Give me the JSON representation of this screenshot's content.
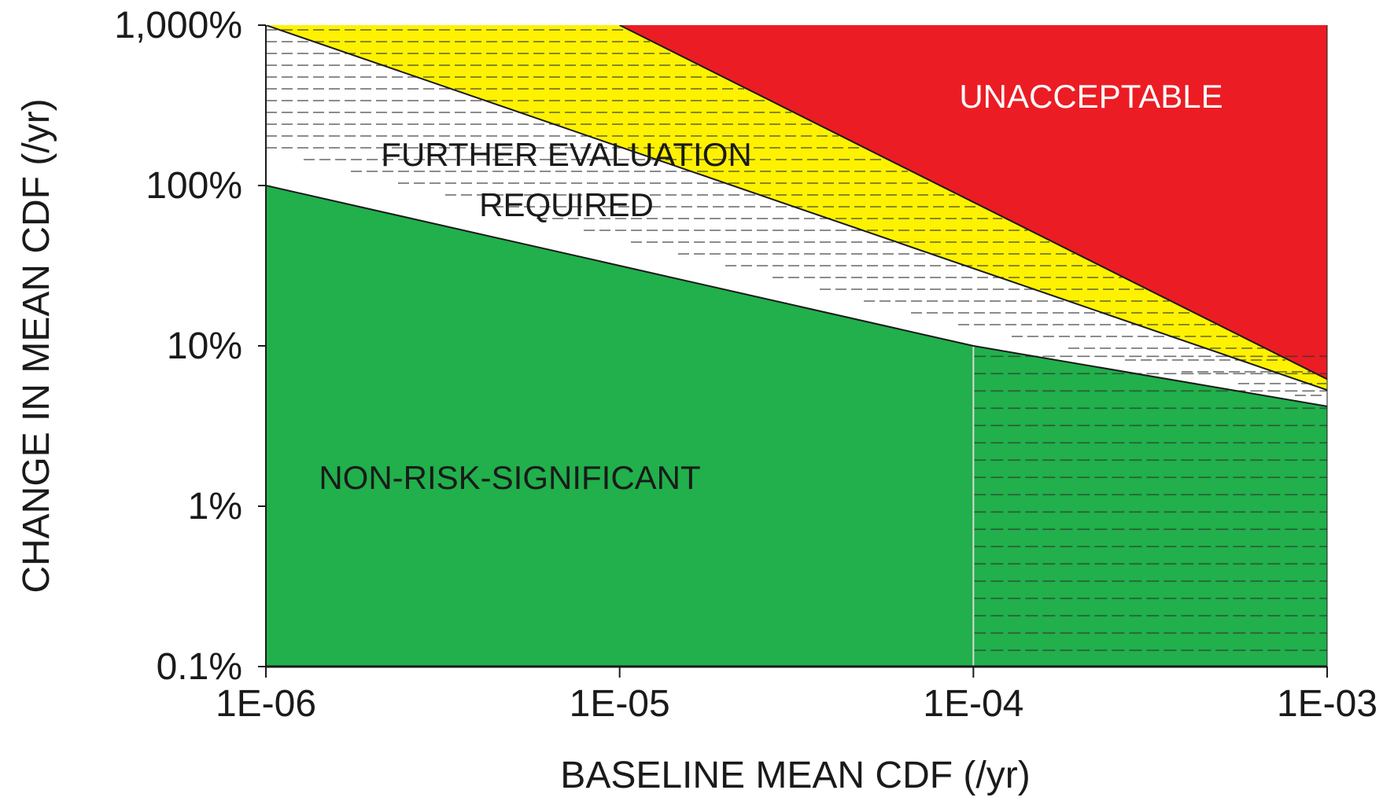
{
  "chart_data": {
    "type": "area",
    "x_scale": "log",
    "y_scale": "log",
    "xlabel": "BASELINE MEAN CDF (/yr)",
    "ylabel": "CHANGE IN MEAN CDF (/yr)",
    "xlim": [
      1e-06,
      0.001
    ],
    "ylim": [
      0.1,
      1000
    ],
    "x_ticks": [
      {
        "value": 1e-06,
        "label": "1E-06"
      },
      {
        "value": 1e-05,
        "label": "1E-05"
      },
      {
        "value": 0.0001,
        "label": "1E-04"
      },
      {
        "value": 0.001,
        "label": "1E-03"
      }
    ],
    "y_ticks": [
      {
        "value": 0.1,
        "label": "0.1%"
      },
      {
        "value": 1,
        "label": "1%"
      },
      {
        "value": 10,
        "label": "10%"
      },
      {
        "value": 100,
        "label": "100%"
      },
      {
        "value": 1000,
        "label": "1,000%"
      }
    ],
    "colors": {
      "non_risk_significant": "#21b04b",
      "further_evaluation": "#ffffff",
      "yellow_band": "#fef200",
      "unacceptable": "#ec1c24",
      "outline": "#1a1a1a",
      "hatch": "#333333"
    },
    "boundaries": {
      "green_upper": [
        [
          1e-06,
          100
        ],
        [
          0.0001,
          10
        ],
        [
          0.001,
          4.2
        ]
      ],
      "yellow_lower": [
        [
          1e-06,
          1000
        ],
        [
          0.001,
          5.3
        ]
      ],
      "red_lower": [
        [
          1e-05,
          1000
        ],
        [
          0.001,
          6.2
        ]
      ]
    },
    "regions": [
      {
        "name": "non_risk_significant",
        "label": "NON-RISK-SIGNIFICANT",
        "color": "#21b04b"
      },
      {
        "name": "further_evaluation",
        "label_lines": [
          "FURTHER EVALUATION",
          "REQUIRED"
        ],
        "color": "#ffffff"
      },
      {
        "name": "unacceptable",
        "label": "UNACCEPTABLE",
        "color": "#ec1c24"
      }
    ],
    "grid": false
  }
}
